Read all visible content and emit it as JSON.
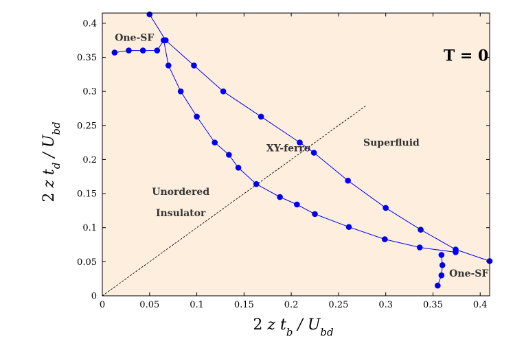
{
  "chart_data": {
    "type": "line",
    "xlabel": "2 z t_b / U_bd",
    "ylabel": "2 z t_d / U_bd",
    "xlim": [
      0,
      0.41
    ],
    "ylim": [
      0,
      0.415
    ],
    "xticks": [
      0,
      0.05,
      0.1,
      0.15,
      0.2,
      0.25,
      0.3,
      0.35,
      0.4
    ],
    "yticks": [
      0,
      0.05,
      0.1,
      0.15,
      0.2,
      0.25,
      0.3,
      0.35,
      0.4
    ],
    "grid": false,
    "background": "#fdeedd",
    "series_color": "#0000ee",
    "series": [
      {
        "x": [
          0.013,
          0.028,
          0.043,
          0.058,
          0.065,
          0.067
        ],
        "y": [
          0.357,
          0.36,
          0.36,
          0.36,
          0.375,
          0.375
        ]
      },
      {
        "x": [
          0.05,
          0.067,
          0.097,
          0.128,
          0.168,
          0.209,
          0.224,
          0.26,
          0.3,
          0.337,
          0.374,
          0.41
        ],
        "y": [
          0.413,
          0.375,
          0.338,
          0.3,
          0.263,
          0.225,
          0.21,
          0.169,
          0.129,
          0.097,
          0.068,
          0.051
        ]
      },
      {
        "x": [
          0.065,
          0.07,
          0.083,
          0.1,
          0.119,
          0.134,
          0.144,
          0.163,
          0.188,
          0.206,
          0.225,
          0.261,
          0.299,
          0.336,
          0.374
        ],
        "y": [
          0.375,
          0.338,
          0.3,
          0.263,
          0.225,
          0.207,
          0.188,
          0.164,
          0.145,
          0.134,
          0.12,
          0.101,
          0.083,
          0.071,
          0.064
        ]
      },
      {
        "x": [
          0.359,
          0.36,
          0.359,
          0.355
        ],
        "y": [
          0.06,
          0.045,
          0.03,
          0.015
        ]
      }
    ],
    "dashed_line": {
      "x": [
        0,
        0.28
      ],
      "y": [
        0,
        0.28
      ]
    },
    "annotations": [
      {
        "text": "T = 0",
        "x": 0.385,
        "y": 0.345,
        "role": "temp"
      },
      {
        "text": "One-SF",
        "x": 0.034,
        "y": 0.374,
        "role": "region"
      },
      {
        "text": "Superfluid",
        "x": 0.306,
        "y": 0.22,
        "role": "region"
      },
      {
        "text": "XY-ferro",
        "x": 0.197,
        "y": 0.212,
        "role": "region"
      },
      {
        "text": "Unordered",
        "x": 0.083,
        "y": 0.148,
        "role": "region"
      },
      {
        "text": "Insulator",
        "x": 0.083,
        "y": 0.117,
        "role": "region"
      },
      {
        "text": "One-SF",
        "x": 0.388,
        "y": 0.028,
        "role": "region"
      }
    ]
  }
}
